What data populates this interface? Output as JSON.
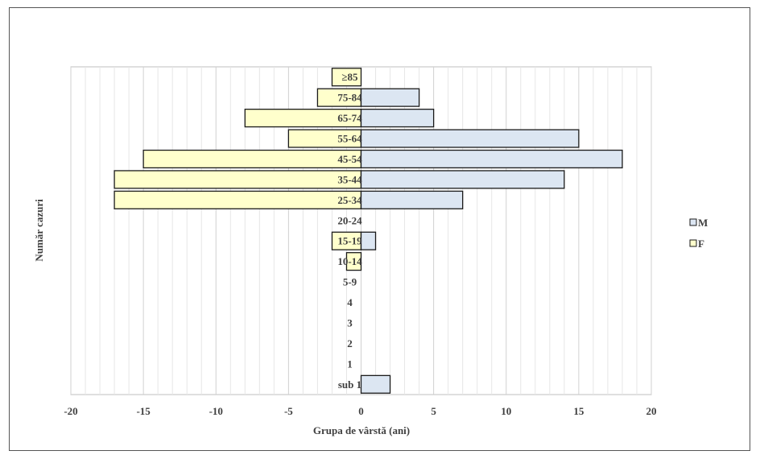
{
  "chart_data": {
    "type": "bar",
    "orientation": "horizontal",
    "categories": [
      "sub 1",
      "1",
      "2",
      "3",
      "4",
      "5-9",
      "10-14",
      "15-19",
      "20-24",
      "25-34",
      "35-44",
      "45-54",
      "55-64",
      "65-74",
      "75-84",
      "≥85"
    ],
    "series": [
      {
        "name": "M",
        "values": [
          2,
          0,
          0,
          0,
          0,
          0,
          0,
          1,
          0,
          7,
          14,
          18,
          15,
          5,
          4,
          0
        ],
        "color": "#dce6f2"
      },
      {
        "name": "F",
        "values": [
          0,
          0,
          0,
          0,
          0,
          0,
          -1,
          -2,
          0,
          -17,
          -17,
          -15,
          -5,
          -8,
          -3,
          -2
        ],
        "color": "#ffffcc"
      }
    ],
    "xlim": [
      -20,
      20
    ],
    "xticks": [
      "-20",
      "-15",
      "-10",
      "-5",
      "0",
      "5",
      "10",
      "15",
      "20"
    ],
    "xlabel": "Grupa de vârstă (ani)",
    "ylabel": "Număr cazuri",
    "legend": {
      "placement": "right",
      "entries": [
        "M",
        "F"
      ]
    },
    "grid": "vertical",
    "bar_outline": "#1a1a1a"
  }
}
